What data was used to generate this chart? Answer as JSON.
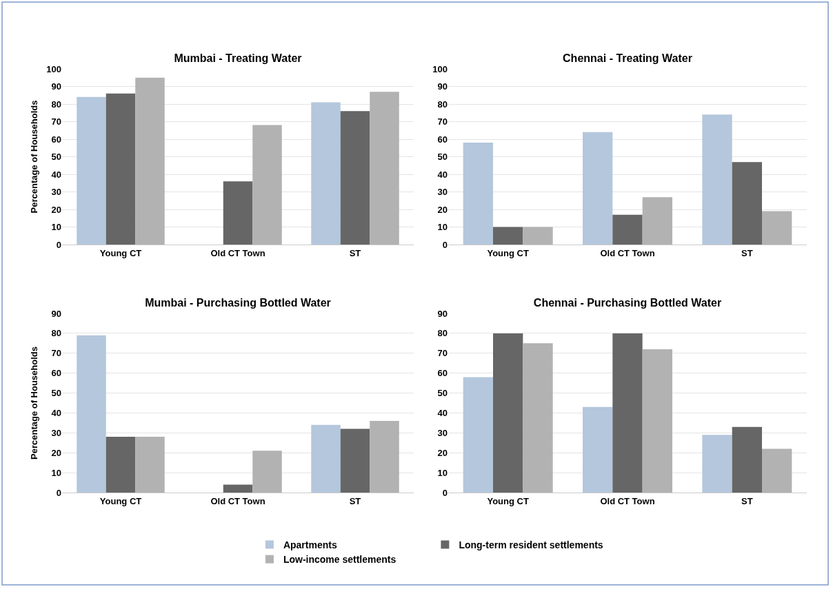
{
  "chart_data": [
    {
      "type": "bar",
      "title": "Mumbai - Treating Water",
      "ylabel": "Percentage of Households",
      "categories": [
        "Young CT",
        "Old CT Town",
        "ST"
      ],
      "ylim": [
        0,
        100
      ],
      "yticks": [
        0,
        10,
        20,
        30,
        40,
        50,
        60,
        70,
        80,
        90,
        100
      ],
      "grid": "y",
      "legend": false,
      "series": [
        {
          "color": "#b4c7dc",
          "values": [
            84,
            null,
            81
          ]
        },
        {
          "color": "#666666",
          "values": [
            86,
            36,
            76
          ]
        },
        {
          "color": "#b2b2b2",
          "values": [
            95,
            68,
            87
          ]
        }
      ]
    },
    {
      "type": "bar",
      "title": "Chennai - Treating Water",
      "categories": [
        "Young CT",
        "Old CT Town",
        "ST"
      ],
      "ylim": [
        0,
        100
      ],
      "yticks": [
        0,
        10,
        20,
        30,
        40,
        50,
        60,
        70,
        80,
        90,
        100
      ],
      "grid": "y",
      "legend": false,
      "series": [
        {
          "color": "#b4c7dc",
          "values": [
            58,
            64,
            74
          ]
        },
        {
          "color": "#666666",
          "values": [
            10,
            17,
            47
          ]
        },
        {
          "color": "#b2b2b2",
          "values": [
            10,
            27,
            19
          ]
        }
      ]
    },
    {
      "type": "bar",
      "title": "Mumbai - Purchasing Bottled Water",
      "ylabel": "Percentage of Households",
      "categories": [
        "Young CT",
        "Old CT Town",
        "ST"
      ],
      "ylim": [
        0,
        90
      ],
      "yticks": [
        0,
        10,
        20,
        30,
        40,
        50,
        60,
        70,
        80,
        90
      ],
      "grid": "y",
      "legend": false,
      "series": [
        {
          "color": "#b4c7dc",
          "values": [
            79,
            null,
            34
          ]
        },
        {
          "color": "#666666",
          "values": [
            28,
            4,
            32
          ]
        },
        {
          "color": "#b2b2b2",
          "values": [
            28,
            21,
            36
          ]
        }
      ]
    },
    {
      "type": "bar",
      "title": "Chennai - Purchasing Bottled Water",
      "categories": [
        "Young CT",
        "Old CT Town",
        "ST"
      ],
      "ylim": [
        0,
        90
      ],
      "yticks": [
        0,
        10,
        20,
        30,
        40,
        50,
        60,
        70,
        80,
        90
      ],
      "grid": "y",
      "legend": "bottom",
      "series": [
        {
          "name": "Apartments",
          "color": "#b4c7dc",
          "values": [
            58,
            43,
            29
          ]
        },
        {
          "name": "Long-term resident settlements",
          "color": "#666666",
          "values": [
            80,
            80,
            33
          ]
        },
        {
          "name": "Low-income settlements",
          "color": "#b2b2b2",
          "values": [
            75,
            72,
            22
          ]
        }
      ]
    }
  ]
}
